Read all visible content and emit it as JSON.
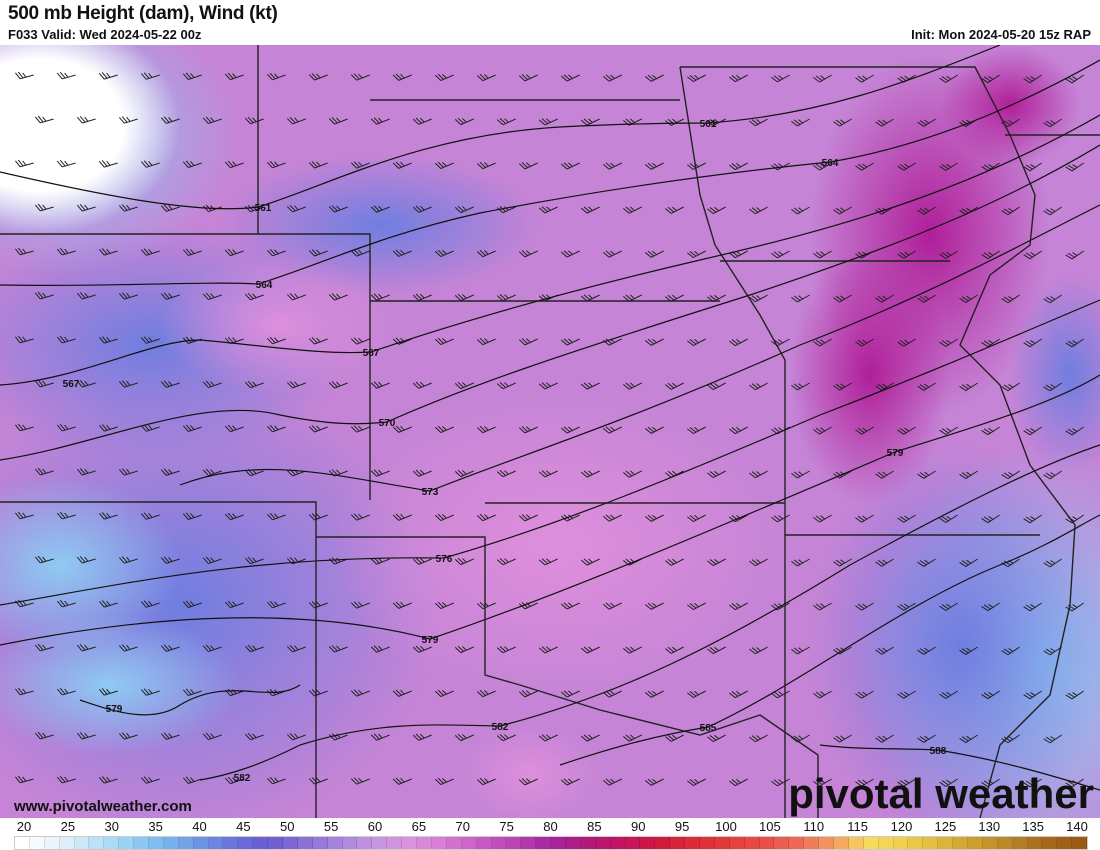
{
  "header": {
    "title": "500 mb Height (dam), Wind (kt)",
    "valid": "F033 Valid: Wed 2024-05-22 00z",
    "init": "Init: Mon 2024-05-20 15z RAP"
  },
  "map": {
    "contour_labels": [
      "561",
      "561",
      "564",
      "564",
      "567",
      "567",
      "570",
      "573",
      "576",
      "579",
      "579",
      "579",
      "582",
      "582",
      "585",
      "588"
    ],
    "colors": {
      "base": "#c98ad8",
      "blue": "#7f86e0",
      "light_blue": "#9fd2f5",
      "magenta": "#b0269e",
      "white": "#ffffff"
    }
  },
  "footer": {
    "credit": "www.pivotalweather.com",
    "logo": "pivotal weather"
  },
  "colorbar": {
    "ticks": [
      "20",
      "25",
      "30",
      "35",
      "40",
      "45",
      "50",
      "55",
      "60",
      "65",
      "70",
      "75",
      "80",
      "85",
      "90",
      "95",
      "100",
      "105",
      "110",
      "115",
      "120",
      "125",
      "130",
      "135",
      "140"
    ],
    "colors": [
      "#ffffff",
      "#e6f3fb",
      "#c2e4f8",
      "#9ad2f4",
      "#7ab9ef",
      "#6d95e4",
      "#6a74dc",
      "#6b5ad0",
      "#8a6fd6",
      "#a786dc",
      "#c796e0",
      "#dc92dc",
      "#d77ad2",
      "#c95cc4",
      "#b844b4",
      "#a4259e",
      "#b01a7c",
      "#c31460",
      "#d0163f",
      "#da2b36",
      "#e23c3c",
      "#e84d46",
      "#ee6a55",
      "#f39b60",
      "#f7dd60",
      "#efd04e",
      "#dfba3e",
      "#cc9f2e",
      "#b9852a",
      "#a76a1c",
      "#9a5a14"
    ]
  }
}
